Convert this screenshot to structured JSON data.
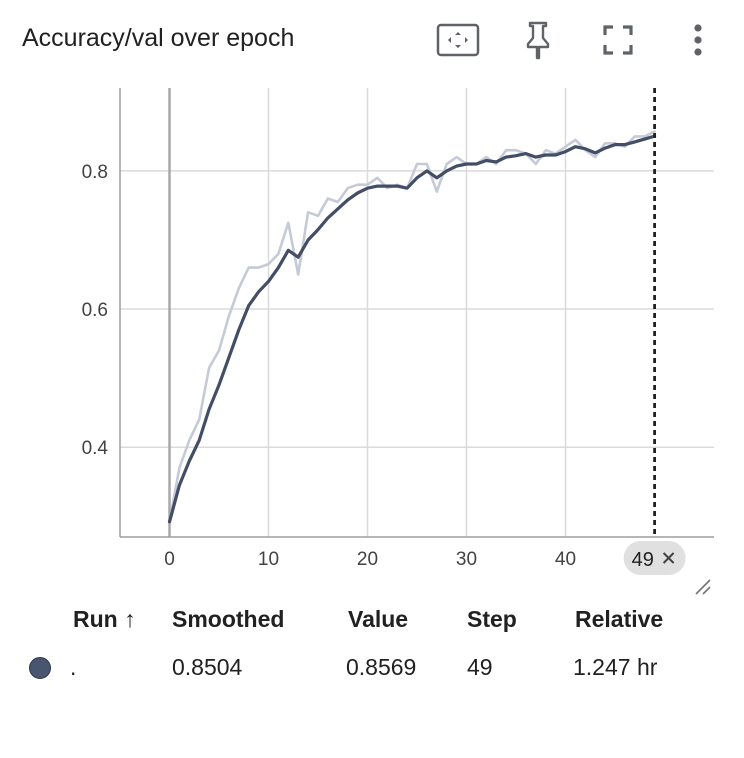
{
  "card": {
    "title": "Accuracy/val over epoch",
    "toolbar": {
      "fit_icon": "fit-to-data-icon",
      "pin_icon": "pin-icon",
      "fullscreen_icon": "fullscreen-icon",
      "more_icon": "more-vertical-icon"
    }
  },
  "chart_data": {
    "type": "line",
    "xlim": [
      -5,
      55
    ],
    "ylim": [
      0.27,
      0.92
    ],
    "x_ticks": [
      0,
      10,
      20,
      30,
      40
    ],
    "y_ticks": [
      0.4,
      0.6,
      0.8
    ],
    "x_tick_labels": [
      "0",
      "10",
      "20",
      "30",
      "40"
    ],
    "y_tick_labels": [
      "0.4",
      "0.6",
      "0.8"
    ],
    "grid": true,
    "hover_step": 49,
    "hover_label": "49",
    "series": [
      {
        "role": "raw",
        "color": "#c5cad6",
        "x": [
          0,
          1,
          2,
          3,
          4,
          5,
          6,
          7,
          8,
          9,
          10,
          11,
          12,
          13,
          14,
          15,
          16,
          17,
          18,
          19,
          20,
          21,
          22,
          23,
          24,
          25,
          26,
          27,
          28,
          29,
          30,
          31,
          32,
          33,
          34,
          35,
          36,
          37,
          38,
          39,
          40,
          41,
          42,
          43,
          44,
          45,
          46,
          47,
          48,
          49
        ],
        "y": [
          0.292,
          0.37,
          0.41,
          0.44,
          0.515,
          0.54,
          0.59,
          0.63,
          0.66,
          0.66,
          0.665,
          0.68,
          0.725,
          0.65,
          0.74,
          0.735,
          0.76,
          0.755,
          0.775,
          0.78,
          0.78,
          0.79,
          0.775,
          0.78,
          0.775,
          0.81,
          0.81,
          0.77,
          0.81,
          0.82,
          0.81,
          0.81,
          0.82,
          0.81,
          0.83,
          0.83,
          0.825,
          0.81,
          0.83,
          0.825,
          0.835,
          0.845,
          0.83,
          0.82,
          0.84,
          0.84,
          0.835,
          0.85,
          0.85,
          0.857
        ]
      },
      {
        "role": "smoothed",
        "color": "#434d66",
        "x": [
          0,
          1,
          2,
          3,
          4,
          5,
          6,
          7,
          8,
          9,
          10,
          11,
          12,
          13,
          14,
          15,
          16,
          17,
          18,
          19,
          20,
          21,
          22,
          23,
          24,
          25,
          26,
          27,
          28,
          29,
          30,
          31,
          32,
          33,
          34,
          35,
          36,
          37,
          38,
          39,
          40,
          41,
          42,
          43,
          44,
          45,
          46,
          47,
          48,
          49
        ],
        "y": [
          0.292,
          0.345,
          0.38,
          0.41,
          0.455,
          0.49,
          0.53,
          0.57,
          0.605,
          0.625,
          0.64,
          0.66,
          0.685,
          0.675,
          0.7,
          0.715,
          0.732,
          0.745,
          0.758,
          0.768,
          0.775,
          0.778,
          0.778,
          0.778,
          0.775,
          0.79,
          0.8,
          0.79,
          0.8,
          0.807,
          0.81,
          0.81,
          0.815,
          0.813,
          0.82,
          0.822,
          0.825,
          0.82,
          0.823,
          0.823,
          0.828,
          0.835,
          0.832,
          0.826,
          0.833,
          0.838,
          0.838,
          0.842,
          0.846,
          0.8504
        ]
      }
    ]
  },
  "table": {
    "headers": {
      "run": "Run ↑",
      "smoothed": "Smoothed",
      "value": "Value",
      "step": "Step",
      "relative": "Relative"
    },
    "rows": [
      {
        "run": ".",
        "run_color": "#4a5570",
        "smoothed": "0.8504",
        "value": "0.8569",
        "step": "49",
        "relative": "1.247 hr"
      }
    ]
  }
}
